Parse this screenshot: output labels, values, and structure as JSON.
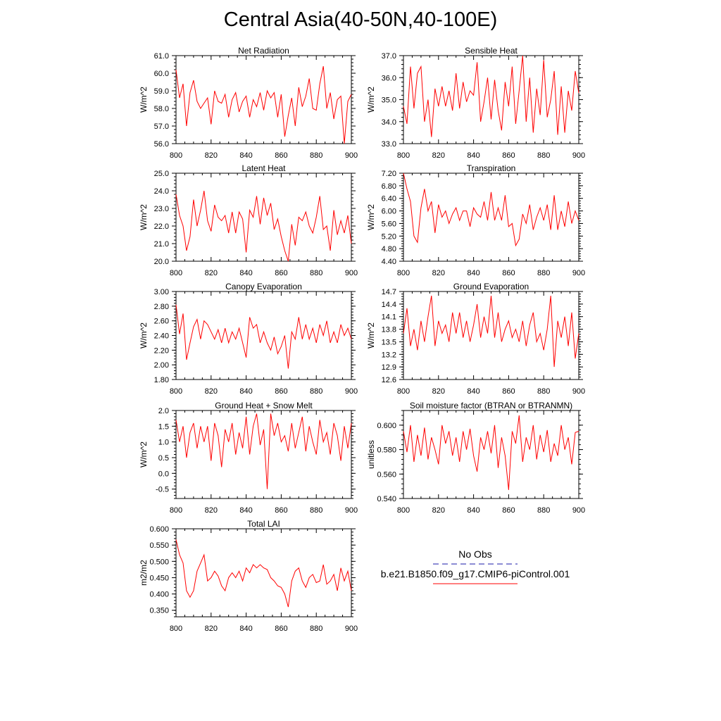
{
  "title": "Central Asia(40-50N,40-100E)",
  "line_color": "#ff0000",
  "obs_color": "#1a1aa8",
  "legend": {
    "obs_label": "No Obs",
    "model_label": "b.e21.B1850.f09_g17.CMIP6-piControl.001"
  },
  "chart_data": [
    {
      "type": "line",
      "title": "Net Radiation",
      "ylabel": "W/m^2",
      "xlim": [
        800,
        900
      ],
      "ylim": [
        56,
        61
      ],
      "xticks": [
        "800",
        "820",
        "840",
        "860",
        "880",
        "900"
      ],
      "yticks": [
        "56.0",
        "57.0",
        "58.0",
        "59.0",
        "60.0",
        "61.0"
      ],
      "x": [
        800,
        802,
        804,
        806,
        808,
        810,
        812,
        814,
        816,
        818,
        820,
        822,
        824,
        826,
        828,
        830,
        832,
        834,
        836,
        838,
        840,
        842,
        844,
        846,
        848,
        850,
        852,
        854,
        856,
        858,
        860,
        862,
        864,
        866,
        868,
        870,
        872,
        874,
        876,
        878,
        880,
        882,
        884,
        886,
        888,
        890,
        892,
        894,
        896,
        898,
        900
      ],
      "values": [
        60.2,
        58.6,
        59.4,
        57.0,
        58.9,
        59.6,
        58.4,
        58.0,
        58.3,
        58.6,
        57.1,
        59.0,
        58.4,
        58.3,
        58.8,
        57.5,
        58.5,
        58.9,
        57.8,
        58.4,
        58.7,
        57.5,
        58.5,
        58.1,
        58.9,
        57.9,
        59.0,
        58.6,
        58.9,
        57.5,
        58.8,
        56.4,
        57.6,
        58.6,
        57.0,
        59.2,
        58.1,
        58.7,
        59.7,
        58.0,
        57.9,
        59.4,
        60.4,
        58.0,
        58.9,
        57.4,
        58.5,
        58.7,
        56.0,
        58.4,
        58.8
      ]
    },
    {
      "type": "line",
      "title": "Sensible Heat",
      "ylabel": "W/m^2",
      "xlim": [
        800,
        900
      ],
      "ylim": [
        33,
        37
      ],
      "xticks": [
        "800",
        "820",
        "840",
        "860",
        "880",
        "900"
      ],
      "yticks": [
        "33.0",
        "34.0",
        "35.0",
        "36.0",
        "37.0"
      ],
      "x": [
        800,
        802,
        804,
        806,
        808,
        810,
        812,
        814,
        816,
        818,
        820,
        822,
        824,
        826,
        828,
        830,
        832,
        834,
        836,
        838,
        840,
        842,
        844,
        846,
        848,
        850,
        852,
        854,
        856,
        858,
        860,
        862,
        864,
        866,
        868,
        870,
        872,
        874,
        876,
        878,
        880,
        882,
        884,
        886,
        888,
        890,
        892,
        894,
        896,
        898,
        900
      ],
      "values": [
        34.7,
        33.9,
        36.5,
        34.6,
        36.2,
        36.5,
        34.0,
        35.0,
        33.3,
        35.5,
        34.7,
        35.6,
        34.7,
        35.4,
        34.5,
        36.2,
        34.6,
        35.8,
        34.9,
        35.4,
        35.2,
        36.7,
        34.0,
        34.9,
        36.0,
        34.1,
        35.9,
        34.5,
        33.6,
        35.8,
        34.7,
        36.5,
        33.9,
        35.4,
        37.0,
        34.0,
        36.0,
        33.5,
        35.5,
        34.3,
        36.8,
        34.2,
        35.0,
        36.3,
        33.4,
        35.6,
        33.5,
        35.4,
        34.5,
        36.3,
        35.3
      ]
    },
    {
      "type": "line",
      "title": "Latent Heat",
      "ylabel": "W/m^2",
      "xlim": [
        800,
        900
      ],
      "ylim": [
        20,
        25
      ],
      "xticks": [
        "800",
        "820",
        "840",
        "860",
        "880",
        "900"
      ],
      "yticks": [
        "20.0",
        "21.0",
        "22.0",
        "23.0",
        "24.0",
        "25.0"
      ],
      "x": [
        800,
        802,
        804,
        806,
        808,
        810,
        812,
        814,
        816,
        818,
        820,
        822,
        824,
        826,
        828,
        830,
        832,
        834,
        836,
        838,
        840,
        842,
        844,
        846,
        848,
        850,
        852,
        854,
        856,
        858,
        860,
        862,
        864,
        866,
        868,
        870,
        872,
        874,
        876,
        878,
        880,
        882,
        884,
        886,
        888,
        890,
        892,
        894,
        896,
        898,
        900
      ],
      "values": [
        23.8,
        22.6,
        22.0,
        20.6,
        21.4,
        23.5,
        22.0,
        22.9,
        24.0,
        22.3,
        21.7,
        23.2,
        22.5,
        22.3,
        22.6,
        21.6,
        22.8,
        21.6,
        22.8,
        22.4,
        20.5,
        22.9,
        22.5,
        23.7,
        22.1,
        23.6,
        22.6,
        23.3,
        21.8,
        22.4,
        21.4,
        20.6,
        20.0,
        22.1,
        20.9,
        22.5,
        22.3,
        22.8,
        22.0,
        21.6,
        22.5,
        23.7,
        21.8,
        22.0,
        20.6,
        22.9,
        21.5,
        22.3,
        21.6,
        22.6,
        21.0
      ]
    },
    {
      "type": "line",
      "title": "Transpiration",
      "ylabel": "W/m^2",
      "xlim": [
        800,
        900
      ],
      "ylim": [
        4.4,
        7.2
      ],
      "xticks": [
        "800",
        "820",
        "840",
        "860",
        "880",
        "900"
      ],
      "yticks": [
        "4.40",
        "4.80",
        "5.20",
        "5.60",
        "6.00",
        "6.40",
        "6.80",
        "7.20"
      ],
      "x": [
        800,
        802,
        804,
        806,
        808,
        810,
        812,
        814,
        816,
        818,
        820,
        822,
        824,
        826,
        828,
        830,
        832,
        834,
        836,
        838,
        840,
        842,
        844,
        846,
        848,
        850,
        852,
        854,
        856,
        858,
        860,
        862,
        864,
        866,
        868,
        870,
        872,
        874,
        876,
        878,
        880,
        882,
        884,
        886,
        888,
        890,
        892,
        894,
        896,
        898,
        900
      ],
      "values": [
        7.2,
        6.7,
        6.3,
        5.2,
        5.0,
        6.1,
        6.7,
        6.0,
        6.3,
        5.3,
        6.2,
        5.8,
        6.0,
        5.6,
        5.9,
        6.1,
        5.7,
        6.0,
        6.0,
        5.5,
        6.1,
        5.9,
        5.8,
        6.3,
        5.7,
        6.6,
        5.7,
        6.1,
        5.7,
        6.5,
        5.5,
        5.6,
        4.9,
        5.1,
        5.9,
        5.6,
        6.2,
        5.4,
        5.8,
        6.1,
        5.7,
        6.2,
        5.4,
        6.5,
        5.4,
        6.0,
        5.5,
        6.3,
        5.6,
        6.0,
        5.7
      ]
    },
    {
      "type": "line",
      "title": "Canopy Evaporation",
      "ylabel": "W/m^2",
      "xlim": [
        800,
        900
      ],
      "ylim": [
        1.8,
        3.0
      ],
      "xticks": [
        "800",
        "820",
        "840",
        "860",
        "880",
        "900"
      ],
      "yticks": [
        "1.80",
        "2.00",
        "2.20",
        "2.40",
        "2.60",
        "2.80",
        "3.00"
      ],
      "x": [
        800,
        802,
        804,
        806,
        808,
        810,
        812,
        814,
        816,
        818,
        820,
        822,
        824,
        826,
        828,
        830,
        832,
        834,
        836,
        838,
        840,
        842,
        844,
        846,
        848,
        850,
        852,
        854,
        856,
        858,
        860,
        862,
        864,
        866,
        868,
        870,
        872,
        874,
        876,
        878,
        880,
        882,
        884,
        886,
        888,
        890,
        892,
        894,
        896,
        898,
        900
      ],
      "values": [
        2.82,
        2.42,
        2.7,
        2.07,
        2.3,
        2.52,
        2.62,
        2.35,
        2.6,
        2.55,
        2.45,
        2.35,
        2.48,
        2.3,
        2.5,
        2.3,
        2.45,
        2.35,
        2.5,
        2.3,
        2.1,
        2.65,
        2.5,
        2.55,
        2.3,
        2.45,
        2.3,
        2.2,
        2.38,
        2.15,
        2.25,
        2.4,
        1.95,
        2.45,
        2.35,
        2.65,
        2.35,
        2.55,
        2.35,
        2.5,
        2.3,
        2.55,
        2.4,
        2.6,
        2.3,
        2.45,
        2.3,
        2.55,
        2.4,
        2.5,
        2.35
      ]
    },
    {
      "type": "line",
      "title": "Ground Evaporation",
      "ylabel": "W/m^2",
      "xlim": [
        800,
        900
      ],
      "ylim": [
        12.6,
        14.7
      ],
      "xticks": [
        "800",
        "820",
        "840",
        "860",
        "880",
        "900"
      ],
      "yticks": [
        "12.6",
        "12.9",
        "13.2",
        "13.5",
        "13.8",
        "14.1",
        "14.4",
        "14.7"
      ],
      "x": [
        800,
        802,
        804,
        806,
        808,
        810,
        812,
        814,
        816,
        818,
        820,
        822,
        824,
        826,
        828,
        830,
        832,
        834,
        836,
        838,
        840,
        842,
        844,
        846,
        848,
        850,
        852,
        854,
        856,
        858,
        860,
        862,
        864,
        866,
        868,
        870,
        872,
        874,
        876,
        878,
        880,
        882,
        884,
        886,
        888,
        890,
        892,
        894,
        896,
        898,
        900
      ],
      "values": [
        13.7,
        14.3,
        13.4,
        13.8,
        13.3,
        14.0,
        13.5,
        14.1,
        14.6,
        13.4,
        14.0,
        13.7,
        13.9,
        13.5,
        14.2,
        13.7,
        14.2,
        13.6,
        14.0,
        13.5,
        13.9,
        14.4,
        13.6,
        14.1,
        13.7,
        14.6,
        13.6,
        14.2,
        13.5,
        13.8,
        14.0,
        13.6,
        13.8,
        13.5,
        14.0,
        13.4,
        13.9,
        14.2,
        13.5,
        13.7,
        13.3,
        13.8,
        14.6,
        12.9,
        14.0,
        13.6,
        14.1,
        13.4,
        14.2,
        13.1,
        13.7
      ]
    },
    {
      "type": "line",
      "title": "Ground Heat + Snow Melt",
      "ylabel": "W/m^2",
      "xlim": [
        800,
        900
      ],
      "ylim": [
        -0.8,
        2.0
      ],
      "xticks": [
        "800",
        "820",
        "840",
        "860",
        "880",
        "900"
      ],
      "yticks": [
        "-0.5",
        "0.0",
        "0.5",
        "1.0",
        "1.5",
        "2.0"
      ],
      "x": [
        800,
        802,
        804,
        806,
        808,
        810,
        812,
        814,
        816,
        818,
        820,
        822,
        824,
        826,
        828,
        830,
        832,
        834,
        836,
        838,
        840,
        842,
        844,
        846,
        848,
        850,
        852,
        854,
        856,
        858,
        860,
        862,
        864,
        866,
        868,
        870,
        872,
        874,
        876,
        878,
        880,
        882,
        884,
        886,
        888,
        890,
        892,
        894,
        896,
        898,
        900
      ],
      "values": [
        1.7,
        1.0,
        1.5,
        0.5,
        1.3,
        1.6,
        0.8,
        1.5,
        1.0,
        1.5,
        0.4,
        1.6,
        1.2,
        0.2,
        1.4,
        1.0,
        1.6,
        0.6,
        1.3,
        0.8,
        1.8,
        0.6,
        1.5,
        1.9,
        0.9,
        1.4,
        -0.5,
        1.9,
        1.2,
        1.6,
        1.0,
        1.2,
        0.7,
        1.6,
        0.8,
        1.3,
        1.8,
        0.7,
        1.5,
        1.0,
        0.6,
        1.7,
        1.0,
        1.3,
        0.6,
        1.6,
        1.2,
        0.4,
        1.5,
        0.8,
        1.6
      ]
    },
    {
      "type": "line",
      "title": "Soil moisture factor (BTRAN or BTRANMN)",
      "ylabel": "unitless",
      "xlim": [
        800,
        900
      ],
      "ylim": [
        0.54,
        0.612
      ],
      "xticks": [
        "800",
        "820",
        "840",
        "860",
        "880",
        "900"
      ],
      "yticks": [
        "0.540",
        "0.560",
        "0.580",
        "0.600"
      ],
      "x": [
        800,
        802,
        804,
        806,
        808,
        810,
        812,
        814,
        816,
        818,
        820,
        822,
        824,
        826,
        828,
        830,
        832,
        834,
        836,
        838,
        840,
        842,
        844,
        846,
        848,
        850,
        852,
        854,
        856,
        858,
        860,
        862,
        864,
        866,
        868,
        870,
        872,
        874,
        876,
        878,
        880,
        882,
        884,
        886,
        888,
        890,
        892,
        894,
        896,
        898,
        900
      ],
      "values": [
        0.595,
        0.578,
        0.6,
        0.57,
        0.592,
        0.575,
        0.598,
        0.572,
        0.59,
        0.58,
        0.568,
        0.6,
        0.585,
        0.595,
        0.575,
        0.59,
        0.57,
        0.595,
        0.58,
        0.597,
        0.575,
        0.562,
        0.59,
        0.58,
        0.595,
        0.577,
        0.6,
        0.565,
        0.59,
        0.575,
        0.547,
        0.595,
        0.585,
        0.608,
        0.57,
        0.59,
        0.58,
        0.6,
        0.572,
        0.592,
        0.578,
        0.596,
        0.57,
        0.585,
        0.575,
        0.6,
        0.58,
        0.59,
        0.568,
        0.594,
        0.595
      ]
    },
    {
      "type": "line",
      "title": "Total LAI",
      "ylabel": "m2/m2",
      "xlim": [
        800,
        900
      ],
      "ylim": [
        0.33,
        0.6
      ],
      "xticks": [
        "800",
        "820",
        "840",
        "860",
        "880",
        "900"
      ],
      "yticks": [
        "0.350",
        "0.400",
        "0.450",
        "0.500",
        "0.550",
        "0.600"
      ],
      "x": [
        800,
        802,
        804,
        806,
        808,
        810,
        812,
        814,
        816,
        818,
        820,
        822,
        824,
        826,
        828,
        830,
        832,
        834,
        836,
        838,
        840,
        842,
        844,
        846,
        848,
        850,
        852,
        854,
        856,
        858,
        860,
        862,
        864,
        866,
        868,
        870,
        872,
        874,
        876,
        878,
        880,
        882,
        884,
        886,
        888,
        890,
        892,
        894,
        896,
        898,
        900
      ],
      "values": [
        0.567,
        0.52,
        0.495,
        0.41,
        0.39,
        0.41,
        0.47,
        0.495,
        0.52,
        0.44,
        0.45,
        0.47,
        0.455,
        0.425,
        0.41,
        0.45,
        0.465,
        0.45,
        0.47,
        0.44,
        0.48,
        0.465,
        0.49,
        0.48,
        0.49,
        0.48,
        0.475,
        0.45,
        0.44,
        0.425,
        0.42,
        0.4,
        0.36,
        0.44,
        0.47,
        0.48,
        0.44,
        0.42,
        0.45,
        0.46,
        0.435,
        0.44,
        0.49,
        0.43,
        0.44,
        0.46,
        0.41,
        0.48,
        0.44,
        0.47,
        0.41
      ]
    }
  ]
}
